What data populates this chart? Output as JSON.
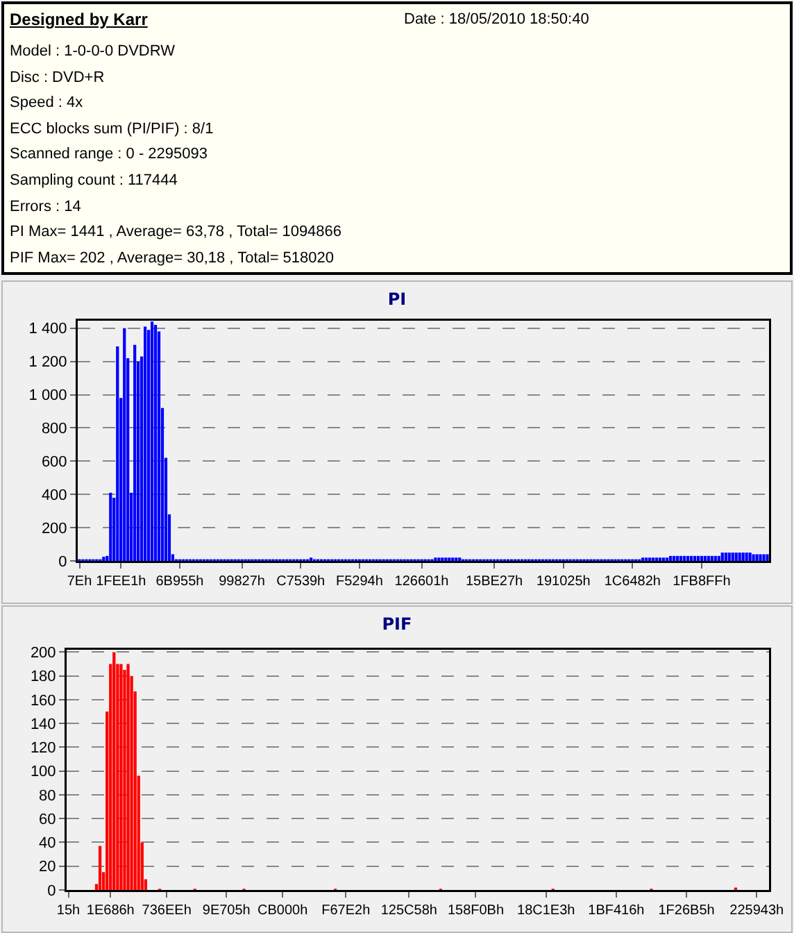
{
  "chart_data": [
    {
      "type": "other",
      "title": "Designed by Karr",
      "subtitle": "Date : 18/05/2010 18:50:40",
      "annotations": [
        "Model : 1-0-0-0 DVDRW",
        "Disc : DVD+R",
        "Speed : 4x",
        "ECC blocks sum (PI/PIF) : 8/1",
        "Scanned range : 0 - 2295093",
        "Sampling count : 117444",
        "Errors : 14",
        "PI Max= 1441 , Average= 63,78 , Total= 1094866",
        "PIF Max= 202 , Average= 30,18 , Total= 518020"
      ]
    },
    {
      "type": "bar",
      "title": "PI",
      "grid": "y",
      "categories": [
        "7Eh",
        null,
        null,
        null,
        null,
        null,
        null,
        null,
        null,
        null,
        null,
        null,
        "1FEE1h",
        null,
        null,
        null,
        null,
        null,
        null,
        null,
        null,
        null,
        null,
        null,
        null,
        null,
        null,
        null,
        null,
        "6B955h",
        null,
        null,
        null,
        null,
        null,
        null,
        null,
        null,
        null,
        null,
        null,
        null,
        null,
        null,
        null,
        null,
        null,
        "99827h",
        null,
        null,
        null,
        null,
        null,
        null,
        null,
        null,
        null,
        null,
        null,
        null,
        null,
        null,
        null,
        null,
        "C7539h",
        null,
        null,
        null,
        null,
        null,
        null,
        null,
        null,
        null,
        null,
        null,
        null,
        null,
        null,
        null,
        null,
        "F5294h",
        null,
        null,
        null,
        null,
        null,
        null,
        null,
        null,
        null,
        null,
        null,
        null,
        null,
        null,
        null,
        null,
        null,
        "126601h",
        null,
        null,
        null,
        null,
        null,
        null,
        null,
        null,
        null,
        null,
        null,
        null,
        null,
        null,
        null,
        null,
        null,
        null,
        null,
        null,
        "15BE27h",
        null,
        null,
        null,
        null,
        null,
        null,
        null,
        null,
        null,
        null,
        null,
        null,
        null,
        null,
        null,
        null,
        null,
        null,
        null,
        "191025h",
        null,
        null,
        null,
        null,
        null,
        null,
        null,
        null,
        null,
        null,
        null,
        null,
        null,
        null,
        null,
        null,
        null,
        null,
        null,
        "1C6482h",
        null,
        null,
        null,
        null,
        null,
        null,
        null,
        null,
        null,
        null,
        null,
        null,
        null,
        null,
        null,
        null,
        null,
        null,
        null,
        "1FB8FFh",
        null,
        null,
        null,
        null,
        null,
        null,
        null,
        null,
        null,
        null,
        null,
        null,
        null,
        null,
        null,
        null,
        null,
        null,
        null
      ],
      "series": [
        {
          "color": "#0000ff",
          "values": [
            10,
            10,
            10,
            10,
            10,
            10,
            10,
            25,
            30,
            410,
            380,
            1290,
            980,
            1400,
            1220,
            410,
            1300,
            1200,
            1230,
            1410,
            1390,
            1440,
            1420,
            1380,
            920,
            620,
            280,
            40,
            10,
            10,
            10,
            10,
            10,
            10,
            10,
            10,
            10,
            10,
            10,
            10,
            10,
            10,
            10,
            10,
            10,
            10,
            10,
            10,
            10,
            10,
            10,
            10,
            10,
            10,
            10,
            10,
            10,
            10,
            10,
            10,
            10,
            10,
            10,
            10,
            10,
            10,
            10,
            20,
            10,
            10,
            10,
            10,
            10,
            10,
            10,
            10,
            10,
            10,
            10,
            10,
            10,
            10,
            10,
            10,
            10,
            10,
            10,
            10,
            10,
            10,
            10,
            10,
            10,
            10,
            10,
            10,
            10,
            10,
            10,
            10,
            10,
            10,
            10,
            20,
            20,
            20,
            20,
            20,
            20,
            20,
            20,
            10,
            10,
            10,
            10,
            10,
            10,
            10,
            10,
            10,
            10,
            10,
            10,
            10,
            10,
            10,
            10,
            10,
            10,
            10,
            10,
            10,
            10,
            10,
            10,
            10,
            10,
            10,
            10,
            10,
            10,
            10,
            10,
            10,
            10,
            10,
            10,
            10,
            10,
            10,
            10,
            10,
            10,
            10,
            10,
            10,
            10,
            10,
            10,
            10,
            10,
            10,
            10,
            20,
            20,
            20,
            20,
            20,
            20,
            20,
            20,
            30,
            30,
            30,
            30,
            30,
            30,
            30,
            30,
            30,
            30,
            30,
            30,
            30,
            30,
            30,
            50,
            50,
            50,
            50,
            50,
            50,
            50,
            50,
            50,
            40,
            40,
            40,
            40,
            40
          ]
        }
      ],
      "ylim": [
        0,
        1445
      ],
      "yticks": [
        0,
        200,
        400,
        600,
        800,
        {
          "value": 1000,
          "label": "1 000"
        },
        {
          "value": 1200,
          "label": "1 200"
        },
        {
          "value": 1400,
          "label": "1 400"
        }
      ]
    },
    {
      "type": "bar",
      "title": "PIF",
      "grid": "y",
      "categories": [
        "15h",
        null,
        null,
        null,
        null,
        null,
        null,
        null,
        null,
        null,
        null,
        null,
        "1E686h",
        null,
        null,
        null,
        null,
        null,
        null,
        null,
        null,
        null,
        null,
        null,
        null,
        null,
        null,
        null,
        "736EEh",
        null,
        null,
        null,
        null,
        null,
        null,
        null,
        null,
        null,
        null,
        null,
        null,
        null,
        null,
        null,
        null,
        "9E705h",
        null,
        null,
        null,
        null,
        null,
        null,
        null,
        null,
        null,
        null,
        null,
        null,
        null,
        null,
        null,
        "CB000h",
        null,
        null,
        null,
        null,
        null,
        null,
        null,
        null,
        null,
        null,
        null,
        null,
        null,
        null,
        null,
        null,
        null,
        "F67E2h",
        null,
        null,
        null,
        null,
        null,
        null,
        null,
        null,
        null,
        null,
        null,
        null,
        null,
        null,
        null,
        null,
        null,
        "125C58h",
        null,
        null,
        null,
        null,
        null,
        null,
        null,
        null,
        null,
        null,
        null,
        null,
        null,
        null,
        null,
        null,
        null,
        null,
        "158F0Bh",
        null,
        null,
        null,
        null,
        null,
        null,
        null,
        null,
        null,
        null,
        null,
        null,
        null,
        null,
        null,
        null,
        null,
        null,
        null,
        "18C1E3h",
        null,
        null,
        null,
        null,
        null,
        null,
        null,
        null,
        null,
        null,
        null,
        null,
        null,
        null,
        null,
        null,
        null,
        null,
        null,
        "1BF416h",
        null,
        null,
        null,
        null,
        null,
        null,
        null,
        null,
        null,
        null,
        null,
        null,
        null,
        null,
        null,
        null,
        null,
        null,
        null,
        "1F26B5h",
        null,
        null,
        null,
        null,
        null,
        null,
        null,
        null,
        null,
        null,
        null,
        null,
        null,
        null,
        null,
        null,
        null,
        null,
        null,
        "225943h",
        null,
        null,
        null
      ],
      "series": [
        {
          "color": "#ff0000",
          "values": [
            0,
            0,
            0,
            0,
            0,
            0,
            0,
            0,
            5,
            37,
            15,
            150,
            190,
            200,
            190,
            190,
            185,
            190,
            180,
            167,
            96,
            40,
            9,
            0,
            0,
            0,
            1,
            0,
            0,
            0,
            0,
            0,
            0,
            0,
            0,
            0,
            1,
            0,
            0,
            0,
            0,
            0,
            0,
            0,
            0,
            0,
            0,
            0,
            0,
            0,
            1,
            0,
            0,
            0,
            0,
            0,
            0,
            0,
            0,
            0,
            0,
            0,
            0,
            0,
            0,
            0,
            0,
            0,
            0,
            0,
            0,
            0,
            0,
            0,
            0,
            0,
            1,
            0,
            0,
            0,
            0,
            0,
            0,
            0,
            0,
            0,
            0,
            0,
            0,
            0,
            0,
            0,
            0,
            0,
            0,
            0,
            0,
            0,
            0,
            0,
            0,
            0,
            0,
            0,
            0,
            0,
            1,
            0,
            0,
            0,
            0,
            0,
            0,
            0,
            0,
            0,
            0,
            0,
            0,
            0,
            0,
            0,
            0,
            0,
            0,
            0,
            0,
            0,
            0,
            0,
            0,
            0,
            0,
            0,
            0,
            0,
            0,
            0,
            1,
            0,
            0,
            0,
            0,
            0,
            0,
            0,
            0,
            0,
            0,
            0,
            0,
            0,
            0,
            0,
            0,
            0,
            0,
            0,
            0,
            0,
            0,
            0,
            0,
            0,
            0,
            0,
            1,
            0,
            0,
            0,
            0,
            0,
            0,
            0,
            0,
            0,
            0,
            0,
            0,
            0,
            0,
            0,
            0,
            0,
            0,
            0,
            0,
            0,
            0,
            0,
            2,
            0,
            0,
            0,
            0,
            0,
            0,
            0,
            0,
            0
          ]
        }
      ],
      "ylim": [
        0,
        202
      ],
      "yticks": [
        0,
        20,
        40,
        60,
        80,
        100,
        120,
        140,
        160,
        180,
        200
      ]
    }
  ]
}
